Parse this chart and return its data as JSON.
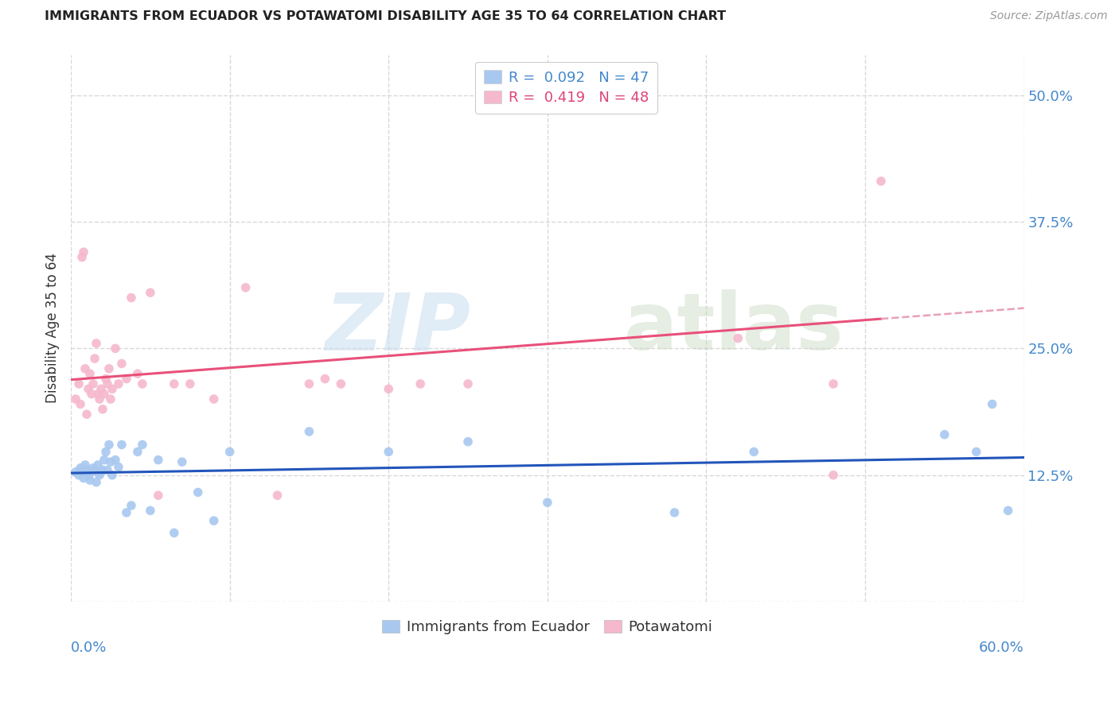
{
  "title": "IMMIGRANTS FROM ECUADOR VS POTAWATOMI DISABILITY AGE 35 TO 64 CORRELATION CHART",
  "source": "Source: ZipAtlas.com",
  "ylabel": "Disability Age 35 to 64",
  "ytick_vals": [
    0.0,
    0.125,
    0.25,
    0.375,
    0.5
  ],
  "ytick_labels": [
    "",
    "12.5%",
    "25.0%",
    "37.5%",
    "50.0%"
  ],
  "xlim": [
    0.0,
    0.6
  ],
  "ylim": [
    0.0,
    0.54
  ],
  "watermark_zip": "ZIP",
  "watermark_atlas": "atlas",
  "legend_line1": "R =  0.092   N = 47",
  "legend_line2": "R =  0.419   N = 48",
  "color_ecuador": "#a8c8f0",
  "color_potawatomi": "#f5b8cc",
  "color_ecuador_line": "#2255bb",
  "color_potawatomi_line": "#e8507a",
  "color_potawatomi_dash": "#e8a0b8",
  "label_ecuador": "Immigrants from Ecuador",
  "label_potawatomi": "Potawatomi",
  "ecuador_x": [
    0.003,
    0.005,
    0.006,
    0.007,
    0.008,
    0.009,
    0.01,
    0.011,
    0.012,
    0.013,
    0.014,
    0.015,
    0.016,
    0.017,
    0.018,
    0.019,
    0.02,
    0.021,
    0.022,
    0.023,
    0.024,
    0.025,
    0.026,
    0.028,
    0.03,
    0.032,
    0.035,
    0.038,
    0.042,
    0.045,
    0.05,
    0.055,
    0.065,
    0.07,
    0.08,
    0.09,
    0.1,
    0.15,
    0.2,
    0.25,
    0.3,
    0.38,
    0.43,
    0.55,
    0.57,
    0.58,
    0.59
  ],
  "ecuador_y": [
    0.128,
    0.125,
    0.132,
    0.13,
    0.122,
    0.135,
    0.13,
    0.125,
    0.12,
    0.128,
    0.132,
    0.13,
    0.118,
    0.135,
    0.125,
    0.128,
    0.13,
    0.14,
    0.148,
    0.13,
    0.155,
    0.138,
    0.125,
    0.14,
    0.133,
    0.155,
    0.088,
    0.095,
    0.148,
    0.155,
    0.09,
    0.14,
    0.068,
    0.138,
    0.108,
    0.08,
    0.148,
    0.168,
    0.148,
    0.158,
    0.098,
    0.088,
    0.148,
    0.165,
    0.148,
    0.195,
    0.09
  ],
  "potawatomi_x": [
    0.003,
    0.005,
    0.006,
    0.007,
    0.008,
    0.009,
    0.01,
    0.011,
    0.012,
    0.013,
    0.014,
    0.015,
    0.016,
    0.017,
    0.018,
    0.019,
    0.02,
    0.021,
    0.022,
    0.023,
    0.024,
    0.025,
    0.026,
    0.028,
    0.03,
    0.032,
    0.035,
    0.038,
    0.042,
    0.045,
    0.05,
    0.055,
    0.065,
    0.075,
    0.09,
    0.11,
    0.13,
    0.16,
    0.22,
    0.35,
    0.42,
    0.48,
    0.51,
    0.15,
    0.17,
    0.2,
    0.25,
    0.48
  ],
  "potawatomi_y": [
    0.2,
    0.215,
    0.195,
    0.34,
    0.345,
    0.23,
    0.185,
    0.21,
    0.225,
    0.205,
    0.215,
    0.24,
    0.255,
    0.205,
    0.2,
    0.21,
    0.19,
    0.205,
    0.22,
    0.215,
    0.23,
    0.2,
    0.21,
    0.25,
    0.215,
    0.235,
    0.22,
    0.3,
    0.225,
    0.215,
    0.305,
    0.105,
    0.215,
    0.215,
    0.2,
    0.31,
    0.105,
    0.22,
    0.215,
    0.49,
    0.26,
    0.125,
    0.415,
    0.215,
    0.215,
    0.21,
    0.215,
    0.215
  ],
  "background_color": "#ffffff",
  "grid_color": "#d8d8d8",
  "grid_linestyle": "--"
}
